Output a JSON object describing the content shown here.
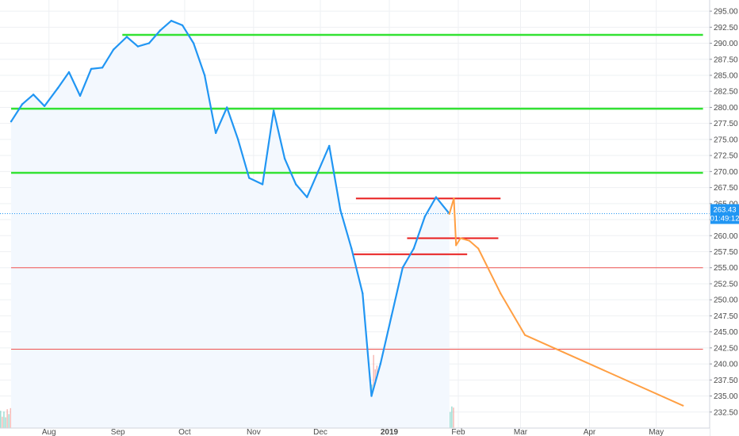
{
  "chart_data": {
    "type": "line",
    "title": "",
    "xlabel": "",
    "ylabel": "",
    "ylim": [
      230.0,
      296.0
    ],
    "y_ticks": [
      "232.50",
      "235.00",
      "237.50",
      "240.00",
      "242.50",
      "245.00",
      "247.50",
      "250.00",
      "252.50",
      "255.00",
      "257.50",
      "260.00",
      "262.50",
      "265.00",
      "267.50",
      "270.00",
      "272.50",
      "275.00",
      "277.50",
      "280.00",
      "282.50",
      "285.00",
      "287.50",
      "290.00",
      "292.50",
      "295.00"
    ],
    "x_ticks": [
      "Aug",
      "Sep",
      "Oct",
      "Nov",
      "Dec",
      "2019",
      "Feb",
      "Mar",
      "Apr",
      "May"
    ],
    "price_tag": {
      "value": "263.43",
      "countdown": "01:49:12",
      "color": "#2196f3"
    },
    "colors": {
      "price_line": "#2196f3",
      "projection": "#ff9f43",
      "support_green": "#33e233",
      "resistance_red": "#e81c1c",
      "thin_red": "#ef5350",
      "area_fill": "#f3f8fe",
      "volume_up": "#7fd3c6",
      "volume_down": "#f3a39e",
      "grid": "#eef0f3"
    },
    "price_series": {
      "name": "",
      "x": [
        "2018-07-15",
        "2018-07-20",
        "2018-07-25",
        "2018-07-30",
        "2018-08-05",
        "2018-08-10",
        "2018-08-15",
        "2018-08-20",
        "2018-08-25",
        "2018-08-30",
        "2018-09-05",
        "2018-09-10",
        "2018-09-15",
        "2018-09-20",
        "2018-09-25",
        "2018-09-30",
        "2018-10-05",
        "2018-10-10",
        "2018-10-15",
        "2018-10-20",
        "2018-10-25",
        "2018-10-30",
        "2018-11-05",
        "2018-11-10",
        "2018-11-15",
        "2018-11-20",
        "2018-11-25",
        "2018-11-30",
        "2018-12-05",
        "2018-12-10",
        "2018-12-15",
        "2018-12-20",
        "2018-12-24",
        "2018-12-28",
        "2019-01-02",
        "2019-01-07",
        "2019-01-12",
        "2019-01-17",
        "2019-01-22",
        "2019-01-28"
      ],
      "y": [
        277.8,
        280.5,
        282.0,
        280.2,
        283.0,
        285.5,
        281.8,
        286.0,
        286.2,
        289.0,
        291.0,
        289.5,
        290.0,
        292.0,
        293.5,
        292.8,
        290.0,
        285.0,
        276.0,
        280.0,
        275.0,
        269.0,
        268.0,
        279.5,
        272.0,
        268.0,
        266.0,
        270.0,
        274.0,
        264.0,
        258.0,
        251.0,
        235.0,
        240.0,
        247.5,
        255.0,
        258.0,
        263.0,
        266.0,
        263.43
      ]
    },
    "projection_series": {
      "name": "",
      "x": [
        "2019-01-28",
        "2019-01-30",
        "2019-01-31",
        "2019-02-02",
        "2019-02-06",
        "2019-02-10",
        "2019-02-20",
        "2019-03-03",
        "2019-05-13"
      ],
      "y": [
        263.4,
        265.8,
        258.5,
        259.6,
        259.2,
        258.0,
        251.0,
        244.5,
        233.5
      ]
    },
    "horizontal_levels": [
      {
        "price": 291.3,
        "kind": "green",
        "from": "2018-09-03",
        "to": "2019-05-22"
      },
      {
        "price": 279.8,
        "kind": "green",
        "from": "2018-07-15",
        "to": "2019-05-22"
      },
      {
        "price": 269.8,
        "kind": "green",
        "from": "2018-07-15",
        "to": "2019-05-22"
      },
      {
        "price": 265.8,
        "kind": "red",
        "from": "2018-12-17",
        "to": "2019-02-20"
      },
      {
        "price": 259.6,
        "kind": "red",
        "from": "2019-01-09",
        "to": "2019-02-19"
      },
      {
        "price": 257.1,
        "kind": "red",
        "from": "2018-12-16",
        "to": "2019-02-05"
      },
      {
        "price": 255.0,
        "kind": "thin-red",
        "from": "2018-07-15",
        "to": "2019-05-22"
      },
      {
        "price": 242.3,
        "kind": "thin-red",
        "from": "2018-07-15",
        "to": "2019-05-22"
      }
    ]
  }
}
